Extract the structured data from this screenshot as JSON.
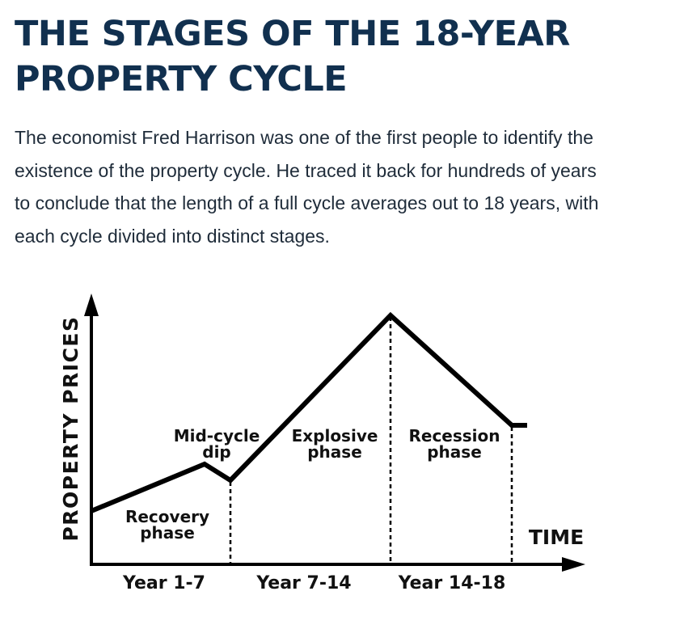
{
  "title_line1": "THE STAGES OF THE 18-YEAR",
  "title_line2": "PROPERTY CYCLE",
  "intro_text": "The economist Fred Harrison was one of the first people to identify the existence of the property cycle. He traced it back for hundreds of years to conclude that the length of a full cycle averages out to 18 years, with each cycle divided into distinct stages.",
  "diagram": {
    "y_axis_label": "PROPERTY PRICES",
    "x_axis_label": "TIME",
    "phases": {
      "recovery": [
        "Recovery",
        "phase"
      ],
      "midcycle": [
        "Mid-cycle",
        "dip"
      ],
      "explosive": [
        "Explosive",
        "phase"
      ],
      "recession": [
        "Recession",
        "phase"
      ]
    },
    "periods": {
      "p1": "Year 1-7",
      "p2": "Year 7-14",
      "p3": "Year 14-18"
    },
    "line_color": "#000000",
    "title_color": "#11304f"
  }
}
